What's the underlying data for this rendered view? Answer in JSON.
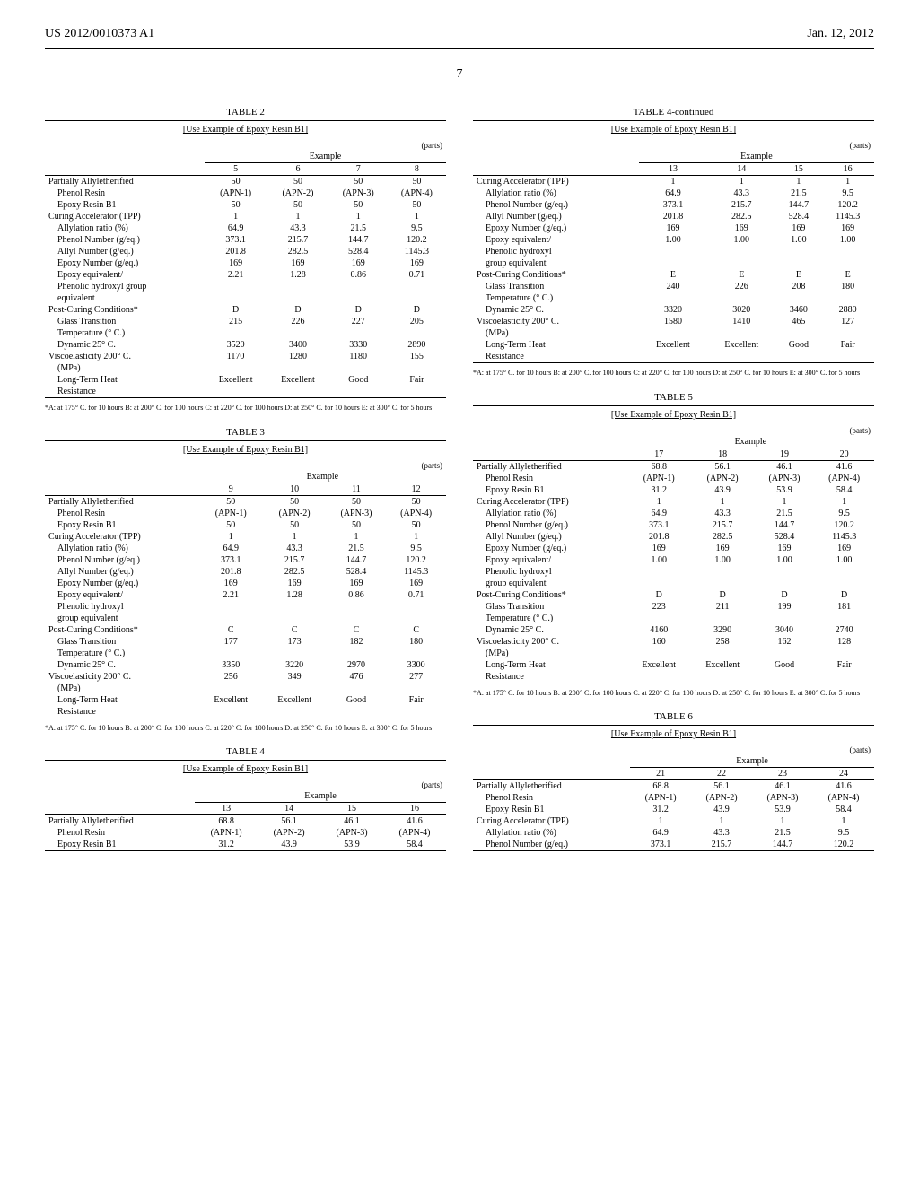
{
  "header": {
    "left": "US 2012/0010373 A1",
    "right": "Jan. 12, 2012",
    "page": "7"
  },
  "footnote": "*A: at 175° C. for 10 hours B: at 200° C. for 100 hours C: at 220° C. for 100 hours D: at 250° C. for 10 hours E: at 300° C. for 5 hours",
  "tables": {
    "t2": {
      "title": "TABLE 2",
      "caption": "[Use Example of Epoxy Resin B1]",
      "parts": "(parts)",
      "exampleLabel": "Example",
      "cols": [
        "5",
        "6",
        "7",
        "8"
      ],
      "rows": [
        {
          "l": "Partially Allyletherified",
          "v": [
            "50",
            "50",
            "50",
            "50"
          ]
        },
        {
          "l": "Phenol Resin",
          "indent": true,
          "v": [
            "(APN-1)",
            "(APN-2)",
            "(APN-3)",
            "(APN-4)"
          ]
        },
        {
          "l": "Epoxy Resin B1",
          "indent": true,
          "v": [
            "50",
            "50",
            "50",
            "50"
          ]
        },
        {
          "l": "Curing Accelerator (TPP)",
          "v": [
            "1",
            "1",
            "1",
            "1"
          ]
        },
        {
          "l": "Allylation ratio (%)",
          "indent": true,
          "v": [
            "64.9",
            "43.3",
            "21.5",
            "9.5"
          ]
        },
        {
          "l": "Phenol Number (g/eq.)",
          "indent": true,
          "v": [
            "373.1",
            "215.7",
            "144.7",
            "120.2"
          ]
        },
        {
          "l": "Allyl Number (g/eq.)",
          "indent": true,
          "v": [
            "201.8",
            "282.5",
            "528.4",
            "1145.3"
          ]
        },
        {
          "l": "Epoxy Number (g/eq.)",
          "indent": true,
          "v": [
            "169",
            "169",
            "169",
            "169"
          ]
        },
        {
          "l": "Epoxy equivalent/",
          "indent": true,
          "v": [
            "2.21",
            "1.28",
            "0.86",
            "0.71"
          ]
        },
        {
          "l": "Phenolic hydroxyl group",
          "indent": true,
          "v": [
            "",
            "",
            "",
            ""
          ]
        },
        {
          "l": "equivalent",
          "indent": true,
          "v": [
            "",
            "",
            "",
            ""
          ]
        },
        {
          "l": "Post-Curing Conditions*",
          "v": [
            "D",
            "D",
            "D",
            "D"
          ]
        },
        {
          "l": "Glass Transition",
          "indent": true,
          "v": [
            "215",
            "226",
            "227",
            "205"
          ]
        },
        {
          "l": "Temperature (° C.)",
          "indent": true,
          "v": [
            "",
            "",
            "",
            ""
          ]
        },
        {
          "l": "Dynamic          25° C.",
          "indent": true,
          "v": [
            "3520",
            "3400",
            "3330",
            "2890"
          ]
        },
        {
          "l": "Viscoelasticity  200° C.",
          "v": [
            "1170",
            "1280",
            "1180",
            "155"
          ]
        },
        {
          "l": "(MPa)",
          "indent": true,
          "v": [
            "",
            "",
            "",
            ""
          ]
        },
        {
          "l": "Long-Term Heat",
          "indent": true,
          "v": [
            "Excellent",
            "Excellent",
            "Good",
            "Fair"
          ]
        },
        {
          "l": "Resistance",
          "indent": true,
          "v": [
            "",
            "",
            "",
            ""
          ]
        }
      ]
    },
    "t3": {
      "title": "TABLE 3",
      "caption": "[Use Example of Epoxy Resin B1]",
      "parts": "(parts)",
      "exampleLabel": "Example",
      "cols": [
        "9",
        "10",
        "11",
        "12"
      ],
      "rows": [
        {
          "l": "Partially Allyletherified",
          "v": [
            "50",
            "50",
            "50",
            "50"
          ]
        },
        {
          "l": "Phenol Resin",
          "indent": true,
          "v": [
            "(APN-1)",
            "(APN-2)",
            "(APN-3)",
            "(APN-4)"
          ]
        },
        {
          "l": "Epoxy Resin B1",
          "indent": true,
          "v": [
            "50",
            "50",
            "50",
            "50"
          ]
        },
        {
          "l": "Curing Accelerator (TPP)",
          "v": [
            "1",
            "1",
            "1",
            "1"
          ]
        },
        {
          "l": "Allylation ratio (%)",
          "indent": true,
          "v": [
            "64.9",
            "43.3",
            "21.5",
            "9.5"
          ]
        },
        {
          "l": "Phenol Number (g/eq.)",
          "indent": true,
          "v": [
            "373.1",
            "215.7",
            "144.7",
            "120.2"
          ]
        },
        {
          "l": "Allyl Number (g/eq.)",
          "indent": true,
          "v": [
            "201.8",
            "282.5",
            "528.4",
            "1145.3"
          ]
        },
        {
          "l": "Epoxy Number (g/eq.)",
          "indent": true,
          "v": [
            "169",
            "169",
            "169",
            "169"
          ]
        },
        {
          "l": "Epoxy equivalent/",
          "indent": true,
          "v": [
            "2.21",
            "1.28",
            "0.86",
            "0.71"
          ]
        },
        {
          "l": "Phenolic hydroxyl",
          "indent": true,
          "v": [
            "",
            "",
            "",
            ""
          ]
        },
        {
          "l": "group equivalent",
          "indent": true,
          "v": [
            "",
            "",
            "",
            ""
          ]
        },
        {
          "l": "Post-Curing Conditions*",
          "v": [
            "C",
            "C",
            "C",
            "C"
          ]
        },
        {
          "l": "Glass Transition",
          "indent": true,
          "v": [
            "177",
            "173",
            "182",
            "180"
          ]
        },
        {
          "l": "Temperature (° C.)",
          "indent": true,
          "v": [
            "",
            "",
            "",
            ""
          ]
        },
        {
          "l": "Dynamic          25° C.",
          "indent": true,
          "v": [
            "3350",
            "3220",
            "2970",
            "3300"
          ]
        },
        {
          "l": "Viscoelasticity  200° C.",
          "v": [
            "256",
            "349",
            "476",
            "277"
          ]
        },
        {
          "l": "(MPa)",
          "indent": true,
          "v": [
            "",
            "",
            "",
            ""
          ]
        },
        {
          "l": "Long-Term Heat",
          "indent": true,
          "v": [
            "Excellent",
            "Excellent",
            "Good",
            "Fair"
          ]
        },
        {
          "l": "Resistance",
          "indent": true,
          "v": [
            "",
            "",
            "",
            ""
          ]
        }
      ]
    },
    "t4": {
      "title": "TABLE 4",
      "caption": "[Use Example of Epoxy Resin B1]",
      "parts": "(parts)",
      "exampleLabel": "Example",
      "cols": [
        "13",
        "14",
        "15",
        "16"
      ],
      "rows": [
        {
          "l": "Partially Allyletherified",
          "v": [
            "68.8",
            "56.1",
            "46.1",
            "41.6"
          ]
        },
        {
          "l": "Phenol Resin",
          "indent": true,
          "v": [
            "(APN-1)",
            "(APN-2)",
            "(APN-3)",
            "(APN-4)"
          ]
        },
        {
          "l": "Epoxy Resin B1",
          "indent": true,
          "v": [
            "31.2",
            "43.9",
            "53.9",
            "58.4"
          ]
        }
      ]
    },
    "t4c": {
      "title": "TABLE 4-continued",
      "caption": "[Use Example of Epoxy Resin B1]",
      "parts": "(parts)",
      "exampleLabel": "Example",
      "cols": [
        "13",
        "14",
        "15",
        "16"
      ],
      "rows": [
        {
          "l": "Curing Accelerator (TPP)",
          "v": [
            "1",
            "1",
            "1",
            "1"
          ]
        },
        {
          "l": "Allylation ratio (%)",
          "indent": true,
          "v": [
            "64.9",
            "43.3",
            "21.5",
            "9.5"
          ]
        },
        {
          "l": "Phenol Number (g/eq.)",
          "indent": true,
          "v": [
            "373.1",
            "215.7",
            "144.7",
            "120.2"
          ]
        },
        {
          "l": "Allyl Number (g/eq.)",
          "indent": true,
          "v": [
            "201.8",
            "282.5",
            "528.4",
            "1145.3"
          ]
        },
        {
          "l": "Epoxy Number (g/eq.)",
          "indent": true,
          "v": [
            "169",
            "169",
            "169",
            "169"
          ]
        },
        {
          "l": "Epoxy equivalent/",
          "indent": true,
          "v": [
            "1.00",
            "1.00",
            "1.00",
            "1.00"
          ]
        },
        {
          "l": "Phenolic hydroxyl",
          "indent": true,
          "v": [
            "",
            "",
            "",
            ""
          ]
        },
        {
          "l": "group equivalent",
          "indent": true,
          "v": [
            "",
            "",
            "",
            ""
          ]
        },
        {
          "l": "Post-Curing Conditions*",
          "v": [
            "E",
            "E",
            "E",
            "E"
          ]
        },
        {
          "l": "Glass Transition",
          "indent": true,
          "v": [
            "240",
            "226",
            "208",
            "180"
          ]
        },
        {
          "l": "Temperature (° C.)",
          "indent": true,
          "v": [
            "",
            "",
            "",
            ""
          ]
        },
        {
          "l": "Dynamic          25° C.",
          "indent": true,
          "v": [
            "3320",
            "3020",
            "3460",
            "2880"
          ]
        },
        {
          "l": "Viscoelasticity  200° C.",
          "v": [
            "1580",
            "1410",
            "465",
            "127"
          ]
        },
        {
          "l": "(MPa)",
          "indent": true,
          "v": [
            "",
            "",
            "",
            ""
          ]
        },
        {
          "l": "Long-Term Heat",
          "indent": true,
          "v": [
            "Excellent",
            "Excellent",
            "Good",
            "Fair"
          ]
        },
        {
          "l": "Resistance",
          "indent": true,
          "v": [
            "",
            "",
            "",
            ""
          ]
        }
      ]
    },
    "t5": {
      "title": "TABLE 5",
      "caption": "[Use Example of Epoxy Resin B1]",
      "parts": "(parts)",
      "exampleLabel": "Example",
      "cols": [
        "17",
        "18",
        "19",
        "20"
      ],
      "rows": [
        {
          "l": "Partially Allyletherified",
          "v": [
            "68.8",
            "56.1",
            "46.1",
            "41.6"
          ]
        },
        {
          "l": "Phenol Resin",
          "indent": true,
          "v": [
            "(APN-1)",
            "(APN-2)",
            "(APN-3)",
            "(APN-4)"
          ]
        },
        {
          "l": "Epoxy Resin B1",
          "indent": true,
          "v": [
            "31.2",
            "43.9",
            "53.9",
            "58.4"
          ]
        },
        {
          "l": "Curing Accelerator (TPP)",
          "v": [
            "1",
            "1",
            "1",
            "1"
          ]
        },
        {
          "l": "Allylation ratio (%)",
          "indent": true,
          "v": [
            "64.9",
            "43.3",
            "21.5",
            "9.5"
          ]
        },
        {
          "l": "Phenol Number (g/eq.)",
          "indent": true,
          "v": [
            "373.1",
            "215.7",
            "144.7",
            "120.2"
          ]
        },
        {
          "l": "Allyl Number (g/eq.)",
          "indent": true,
          "v": [
            "201.8",
            "282.5",
            "528.4",
            "1145.3"
          ]
        },
        {
          "l": "Epoxy Number (g/eq.)",
          "indent": true,
          "v": [
            "169",
            "169",
            "169",
            "169"
          ]
        },
        {
          "l": "Epoxy equivalent/",
          "indent": true,
          "v": [
            "1.00",
            "1.00",
            "1.00",
            "1.00"
          ]
        },
        {
          "l": "Phenolic hydroxyl",
          "indent": true,
          "v": [
            "",
            "",
            "",
            ""
          ]
        },
        {
          "l": "group equivalent",
          "indent": true,
          "v": [
            "",
            "",
            "",
            ""
          ]
        },
        {
          "l": "Post-Curing Conditions*",
          "v": [
            "D",
            "D",
            "D",
            "D"
          ]
        },
        {
          "l": "Glass Transition",
          "indent": true,
          "v": [
            "223",
            "211",
            "199",
            "181"
          ]
        },
        {
          "l": "Temperature (° C.)",
          "indent": true,
          "v": [
            "",
            "",
            "",
            ""
          ]
        },
        {
          "l": "Dynamic          25° C.",
          "indent": true,
          "v": [
            "4160",
            "3290",
            "3040",
            "2740"
          ]
        },
        {
          "l": "Viscoelasticity  200° C.",
          "v": [
            "160",
            "258",
            "162",
            "128"
          ]
        },
        {
          "l": "(MPa)",
          "indent": true,
          "v": [
            "",
            "",
            "",
            ""
          ]
        },
        {
          "l": "Long-Term Heat",
          "indent": true,
          "v": [
            "Excellent",
            "Excellent",
            "Good",
            "Fair"
          ]
        },
        {
          "l": "Resistance",
          "indent": true,
          "v": [
            "",
            "",
            "",
            ""
          ]
        }
      ]
    },
    "t6": {
      "title": "TABLE 6",
      "caption": "[Use Example of Epoxy Resin B1]",
      "parts": "(parts)",
      "exampleLabel": "Example",
      "cols": [
        "21",
        "22",
        "23",
        "24"
      ],
      "rows": [
        {
          "l": "Partially Allyletherified",
          "v": [
            "68.8",
            "56.1",
            "46.1",
            "41.6"
          ]
        },
        {
          "l": "Phenol Resin",
          "indent": true,
          "v": [
            "(APN-1)",
            "(APN-2)",
            "(APN-3)",
            "(APN-4)"
          ]
        },
        {
          "l": "Epoxy Resin B1",
          "indent": true,
          "v": [
            "31.2",
            "43.9",
            "53.9",
            "58.4"
          ]
        },
        {
          "l": "Curing Accelerator (TPP)",
          "v": [
            "1",
            "1",
            "1",
            "1"
          ]
        },
        {
          "l": "Allylation ratio (%)",
          "indent": true,
          "v": [
            "64.9",
            "43.3",
            "21.5",
            "9.5"
          ]
        },
        {
          "l": "Phenol Number (g/eq.)",
          "indent": true,
          "v": [
            "373.1",
            "215.7",
            "144.7",
            "120.2"
          ]
        }
      ]
    }
  }
}
